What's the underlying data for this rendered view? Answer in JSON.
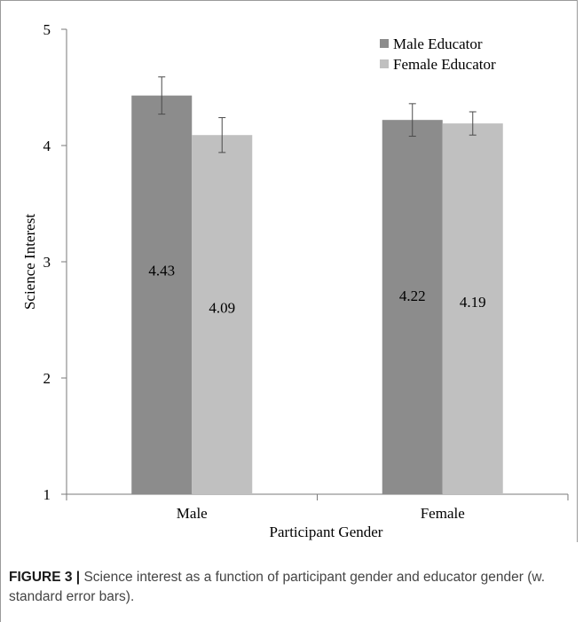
{
  "caption": {
    "label": "FIGURE 3 |",
    "text": " Science interest as a function of participant gender and educator gender (w. standard error bars)."
  },
  "chart_data": {
    "type": "bar",
    "title": "",
    "xlabel": "Participant Gender",
    "ylabel": "Science Interest",
    "categories": [
      "Male",
      "Female"
    ],
    "ylim": [
      1,
      5
    ],
    "yticks": [
      1,
      2,
      3,
      4,
      5
    ],
    "grid": false,
    "legend_position": "top-right",
    "series": [
      {
        "name": "Male Educator",
        "values": [
          4.43,
          4.22
        ],
        "labels": [
          "4.43",
          "4.22"
        ],
        "errors": [
          0.16,
          0.14
        ],
        "color": "#8c8c8c"
      },
      {
        "name": "Female Educator",
        "values": [
          4.09,
          4.19
        ],
        "labels": [
          "4.09",
          "4.19"
        ],
        "errors": [
          0.15,
          0.1
        ],
        "color": "#c0c0c0"
      }
    ]
  }
}
